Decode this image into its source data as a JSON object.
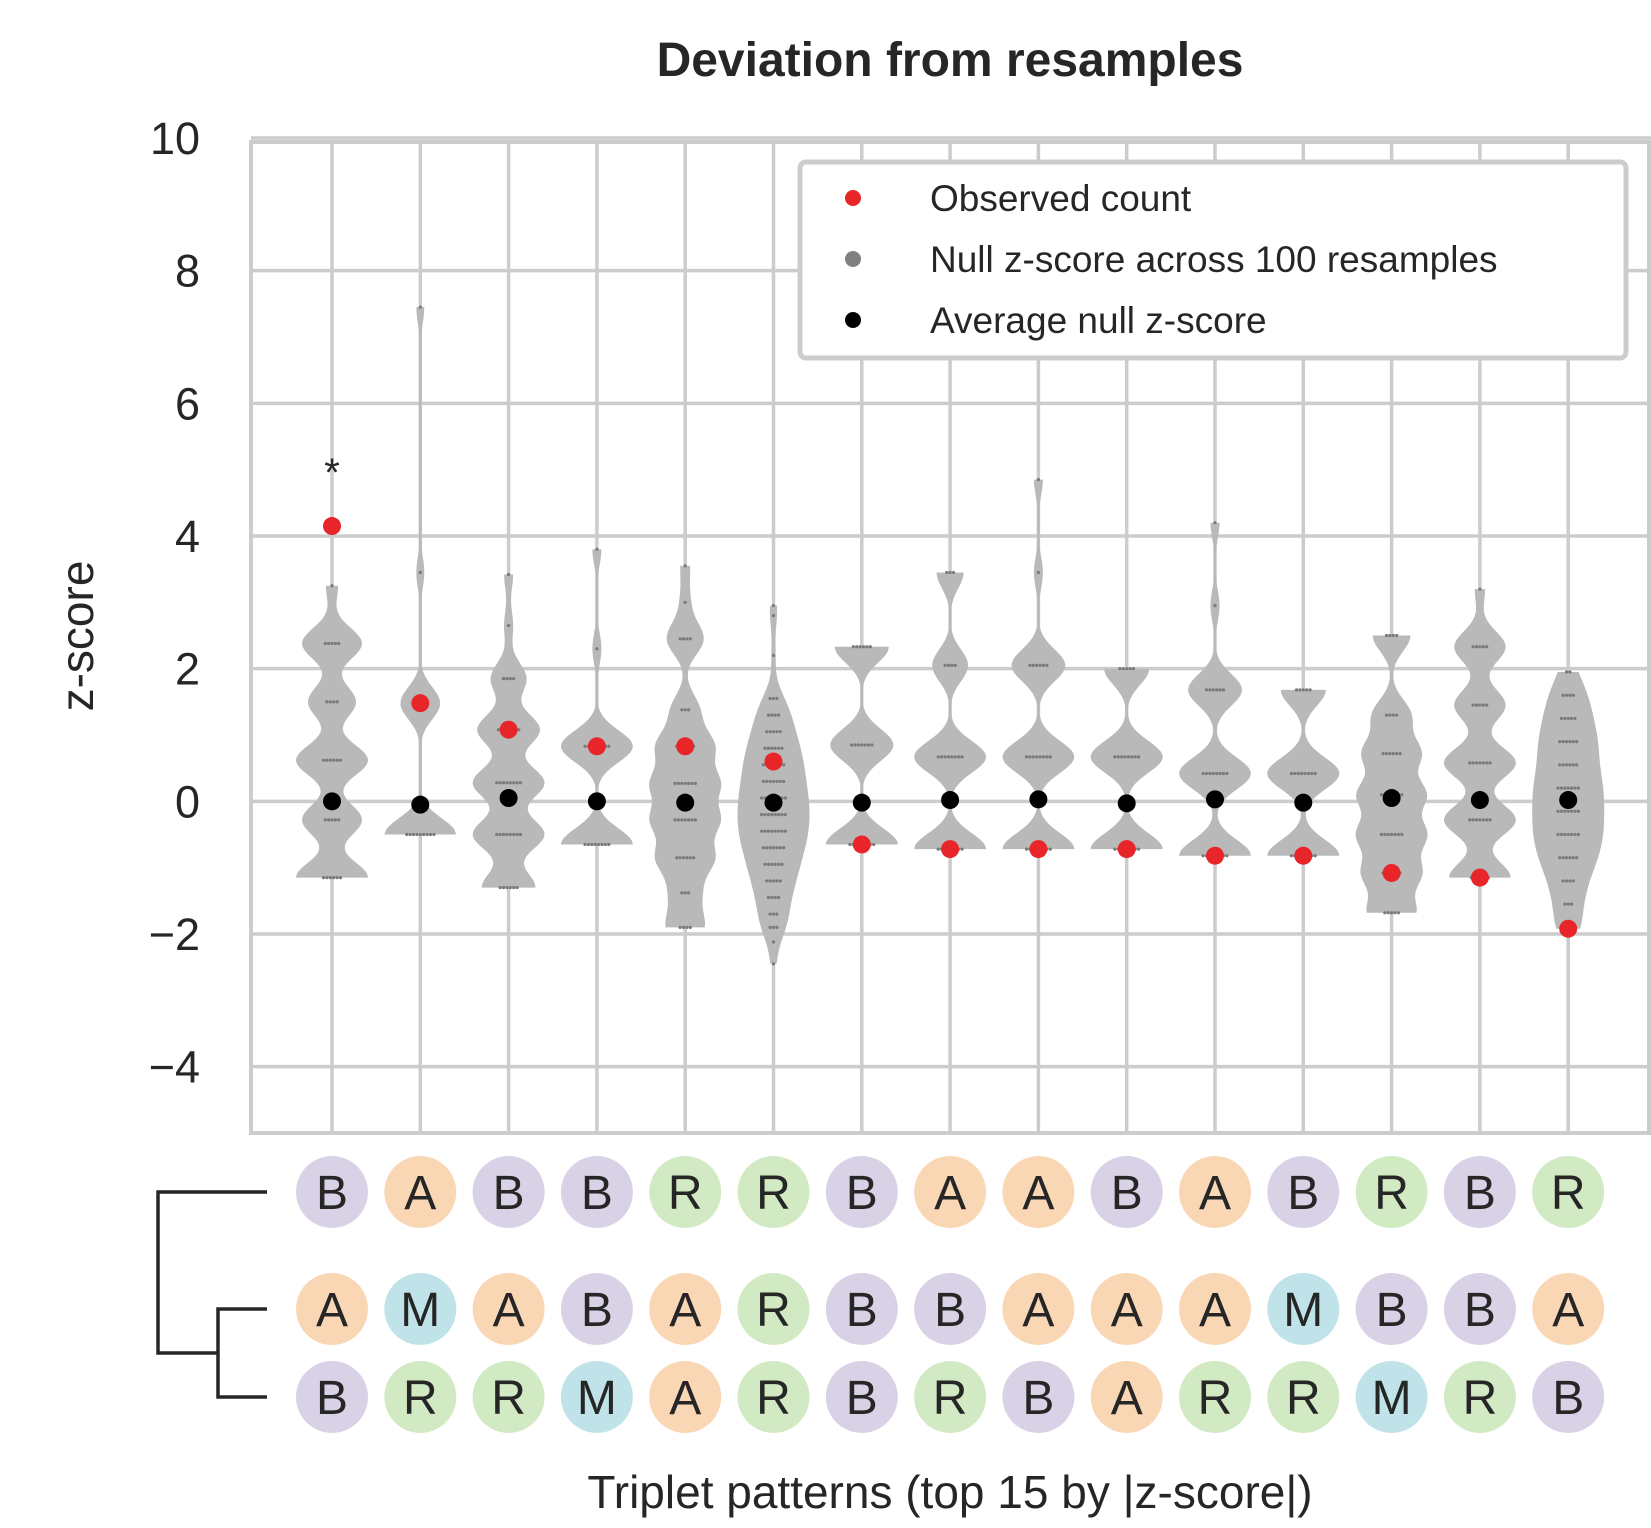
{
  "chart_data": {
    "type": "violin",
    "title": "Deviation from resamples",
    "xlabel": "Triplet patterns (top 15 by |z-score|)",
    "ylabel": "z-score",
    "ylim": [
      -5,
      10
    ],
    "yticks": [
      -4,
      -2,
      0,
      2,
      4,
      6,
      8,
      10
    ],
    "ytick_labels": [
      "−4",
      "−2",
      "0",
      "2",
      "4",
      "6",
      "8",
      "10"
    ],
    "grid": true,
    "legend": {
      "placement": "top-right",
      "entries": [
        {
          "label": "Observed count",
          "color": "#e8262a"
        },
        {
          "label": "Null z-score across 100 resamples",
          "color": "#808080"
        },
        {
          "label": "Average null z-score",
          "color": "#000000"
        }
      ]
    },
    "colors": {
      "violin": "#b9b9b9",
      "null_point": "#7a7a7a",
      "observed": "#e8262a",
      "average": "#000000",
      "grid": "#cccccc",
      "B": "#d9d1e6",
      "A": "#fad7b4",
      "R": "#d2eac3",
      "M": "#bfe3e9"
    },
    "significance_marker": {
      "index": 0,
      "text": "*"
    },
    "patterns": [
      {
        "top": "B",
        "middle": "A",
        "bottom": "B",
        "observed": 4.15,
        "avg_null": 0.0,
        "null_values": [
          {
            "v": -1.15,
            "n": 6
          },
          {
            "v": -0.28,
            "n": 5
          },
          {
            "v": 0.62,
            "n": 6
          },
          {
            "v": 1.5,
            "n": 4
          },
          {
            "v": 2.38,
            "n": 5
          },
          {
            "v": 3.25,
            "n": 1
          }
        ]
      },
      {
        "top": "A",
        "middle": "M",
        "bottom": "R",
        "observed": 1.48,
        "avg_null": -0.05,
        "null_values": [
          {
            "v": -0.5,
            "n": 9
          },
          {
            "v": 1.48,
            "n": 5
          },
          {
            "v": 3.45,
            "n": 1
          },
          {
            "v": 7.45,
            "n": 1
          }
        ]
      },
      {
        "top": "B",
        "middle": "A",
        "bottom": "R",
        "observed": 1.08,
        "avg_null": 0.05,
        "null_values": [
          {
            "v": -1.3,
            "n": 6
          },
          {
            "v": -0.5,
            "n": 8
          },
          {
            "v": 0.28,
            "n": 8
          },
          {
            "v": 1.08,
            "n": 7
          },
          {
            "v": 1.85,
            "n": 4
          },
          {
            "v": 2.65,
            "n": 1
          },
          {
            "v": 3.42,
            "n": 1
          }
        ]
      },
      {
        "top": "B",
        "middle": "B",
        "bottom": "M",
        "observed": 0.83,
        "avg_null": 0.0,
        "null_values": [
          {
            "v": -0.65,
            "n": 8
          },
          {
            "v": 0.83,
            "n": 8
          },
          {
            "v": 2.3,
            "n": 1
          },
          {
            "v": 3.8,
            "n": 1
          }
        ]
      },
      {
        "top": "R",
        "middle": "A",
        "bottom": "A",
        "observed": 0.83,
        "avg_null": -0.02,
        "null_values": [
          {
            "v": -1.9,
            "n": 4
          },
          {
            "v": -1.38,
            "n": 3
          },
          {
            "v": -0.85,
            "n": 6
          },
          {
            "v": -0.28,
            "n": 7
          },
          {
            "v": 0.27,
            "n": 7
          },
          {
            "v": 0.83,
            "n": 6
          },
          {
            "v": 1.38,
            "n": 3
          },
          {
            "v": 2.45,
            "n": 4
          },
          {
            "v": 3.0,
            "n": 1
          },
          {
            "v": 3.55,
            "n": 1
          }
        ]
      },
      {
        "top": "R",
        "middle": "R",
        "bottom": "R",
        "observed": 0.6,
        "avg_null": -0.02,
        "null_values": [
          {
            "v": -2.45,
            "n": 1
          },
          {
            "v": -2.12,
            "n": 1
          },
          {
            "v": -1.9,
            "n": 3
          },
          {
            "v": -1.7,
            "n": 3
          },
          {
            "v": -1.45,
            "n": 4
          },
          {
            "v": -1.2,
            "n": 5
          },
          {
            "v": -0.95,
            "n": 6
          },
          {
            "v": -0.7,
            "n": 7
          },
          {
            "v": -0.45,
            "n": 8
          },
          {
            "v": -0.2,
            "n": 8
          },
          {
            "v": 0.05,
            "n": 8
          },
          {
            "v": 0.3,
            "n": 7
          },
          {
            "v": 0.55,
            "n": 7
          },
          {
            "v": 0.8,
            "n": 6
          },
          {
            "v": 1.05,
            "n": 5
          },
          {
            "v": 1.3,
            "n": 4
          },
          {
            "v": 1.55,
            "n": 3
          },
          {
            "v": 2.2,
            "n": 1
          },
          {
            "v": 2.8,
            "n": 1
          },
          {
            "v": 2.95,
            "n": 1
          }
        ]
      },
      {
        "top": "B",
        "middle": "B",
        "bottom": "B",
        "observed": -0.65,
        "avg_null": -0.02,
        "null_values": [
          {
            "v": -0.65,
            "n": 8
          },
          {
            "v": 0.85,
            "n": 7
          },
          {
            "v": 2.33,
            "n": 6
          }
        ]
      },
      {
        "top": "A",
        "middle": "B",
        "bottom": "R",
        "observed": -0.72,
        "avg_null": 0.02,
        "null_values": [
          {
            "v": -0.72,
            "n": 8
          },
          {
            "v": 0.67,
            "n": 8
          },
          {
            "v": 2.05,
            "n": 4
          },
          {
            "v": 3.45,
            "n": 3
          }
        ]
      },
      {
        "top": "A",
        "middle": "A",
        "bottom": "B",
        "observed": -0.72,
        "avg_null": 0.03,
        "null_values": [
          {
            "v": -0.72,
            "n": 8
          },
          {
            "v": 0.67,
            "n": 8
          },
          {
            "v": 2.05,
            "n": 6
          },
          {
            "v": 3.45,
            "n": 1
          },
          {
            "v": 4.85,
            "n": 1
          }
        ]
      },
      {
        "top": "B",
        "middle": "A",
        "bottom": "A",
        "observed": -0.72,
        "avg_null": -0.03,
        "null_values": [
          {
            "v": -0.72,
            "n": 8
          },
          {
            "v": 0.67,
            "n": 8
          },
          {
            "v": 2.0,
            "n": 5
          }
        ]
      },
      {
        "top": "A",
        "middle": "A",
        "bottom": "R",
        "observed": -0.82,
        "avg_null": 0.03,
        "null_values": [
          {
            "v": -0.82,
            "n": 8
          },
          {
            "v": 0.42,
            "n": 8
          },
          {
            "v": 1.68,
            "n": 6
          },
          {
            "v": 2.95,
            "n": 1
          },
          {
            "v": 4.2,
            "n": 1
          }
        ]
      },
      {
        "top": "B",
        "middle": "M",
        "bottom": "R",
        "observed": -0.82,
        "avg_null": -0.02,
        "null_values": [
          {
            "v": -0.82,
            "n": 8
          },
          {
            "v": 0.42,
            "n": 8
          },
          {
            "v": 1.68,
            "n": 5
          }
        ]
      },
      {
        "top": "R",
        "middle": "B",
        "bottom": "M",
        "observed": -1.08,
        "avg_null": 0.05,
        "null_values": [
          {
            "v": -1.68,
            "n": 5
          },
          {
            "v": -1.08,
            "n": 6
          },
          {
            "v": -0.5,
            "n": 7
          },
          {
            "v": 0.1,
            "n": 7
          },
          {
            "v": 0.72,
            "n": 6
          },
          {
            "v": 1.3,
            "n": 4
          },
          {
            "v": 2.5,
            "n": 4
          }
        ]
      },
      {
        "top": "B",
        "middle": "B",
        "bottom": "R",
        "observed": -1.15,
        "avg_null": 0.02,
        "null_values": [
          {
            "v": -1.15,
            "n": 6
          },
          {
            "v": -0.28,
            "n": 7
          },
          {
            "v": 0.58,
            "n": 7
          },
          {
            "v": 1.45,
            "n": 5
          },
          {
            "v": 2.33,
            "n": 5
          },
          {
            "v": 3.2,
            "n": 1
          }
        ]
      },
      {
        "top": "R",
        "middle": "A",
        "bottom": "B",
        "observed": -1.92,
        "avg_null": 0.02,
        "null_values": [
          {
            "v": -1.92,
            "n": 3
          },
          {
            "v": -1.55,
            "n": 3
          },
          {
            "v": -1.2,
            "n": 4
          },
          {
            "v": -0.85,
            "n": 6
          },
          {
            "v": -0.5,
            "n": 7
          },
          {
            "v": -0.15,
            "n": 7
          },
          {
            "v": 0.2,
            "n": 7
          },
          {
            "v": 0.55,
            "n": 6
          },
          {
            "v": 0.9,
            "n": 6
          },
          {
            "v": 1.25,
            "n": 5
          },
          {
            "v": 1.6,
            "n": 4
          },
          {
            "v": 1.95,
            "n": 2
          }
        ]
      }
    ]
  }
}
